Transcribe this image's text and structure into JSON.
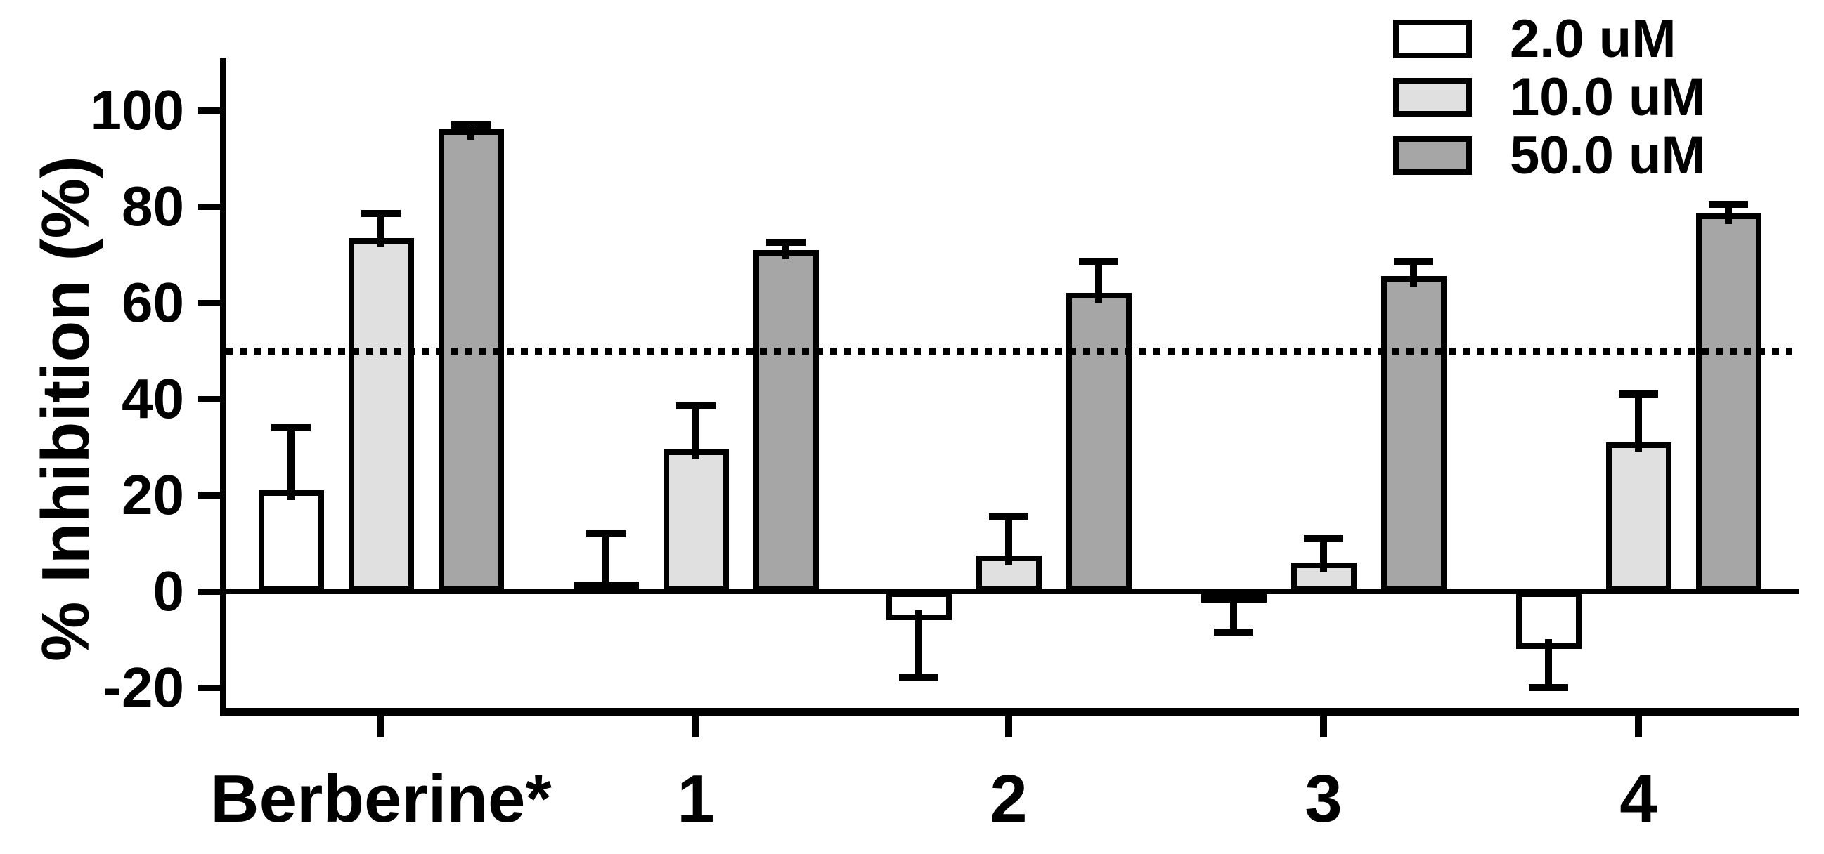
{
  "chart_data": {
    "type": "bar",
    "title": "",
    "ylabel": "% Inhibition (%)",
    "xlabel": "",
    "categories": [
      "Berberine*",
      "1",
      "2",
      "3",
      "4"
    ],
    "series": [
      {
        "name": "2.0 uM",
        "color": "#ffffff",
        "values": [
          21,
          2,
          -6,
          -2,
          -12
        ],
        "errors": [
          13,
          10,
          12,
          6.5,
          8
        ]
      },
      {
        "name": "10.0 uM",
        "color": "#e0e0e0",
        "values": [
          73.5,
          29.5,
          7.5,
          6,
          31
        ],
        "errors": [
          5,
          9,
          8,
          5,
          10
        ]
      },
      {
        "name": "50.0 uM",
        "color": "#a6a6a6",
        "values": [
          96,
          71,
          62,
          65.5,
          78.5
        ],
        "errors": [
          1,
          1.5,
          6.5,
          3,
          2
        ]
      }
    ],
    "yticks": [
      100,
      80,
      60,
      40,
      20,
      0,
      -20
    ],
    "ylim": [
      -20,
      100
    ],
    "reference_line": 50,
    "grid": false,
    "legend_position": "top-right",
    "error_bars": "upper, one-sided (downward for negative bars)",
    "bar_outline_color": "#000000",
    "background_color": "#ffffff"
  }
}
